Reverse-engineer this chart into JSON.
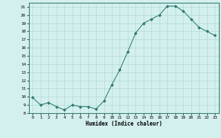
{
  "x": [
    0,
    1,
    2,
    3,
    4,
    5,
    6,
    7,
    8,
    9,
    10,
    11,
    12,
    13,
    14,
    15,
    16,
    17,
    18,
    19,
    20,
    21,
    22,
    23
  ],
  "y": [
    9.9,
    9.0,
    9.3,
    8.8,
    8.4,
    9.0,
    8.8,
    8.8,
    8.5,
    9.5,
    11.5,
    13.3,
    15.5,
    17.8,
    19.0,
    19.5,
    20.0,
    21.1,
    21.1,
    20.5,
    19.5,
    18.5,
    18.0,
    17.5
  ],
  "xlabel": "Humidex (Indice chaleur)",
  "ylim": [
    8,
    21.5
  ],
  "xlim": [
    -0.5,
    23.5
  ],
  "yticks": [
    8,
    9,
    10,
    11,
    12,
    13,
    14,
    15,
    16,
    17,
    18,
    19,
    20,
    21
  ],
  "xticks": [
    0,
    1,
    2,
    3,
    4,
    5,
    6,
    7,
    8,
    9,
    10,
    11,
    12,
    13,
    14,
    15,
    16,
    17,
    18,
    19,
    20,
    21,
    22,
    23
  ],
  "line_color": "#2d7a6e",
  "marker_color": "#2d7a6e",
  "bg_color": "#d4f0ee",
  "grid_color": "#b0d8d4"
}
